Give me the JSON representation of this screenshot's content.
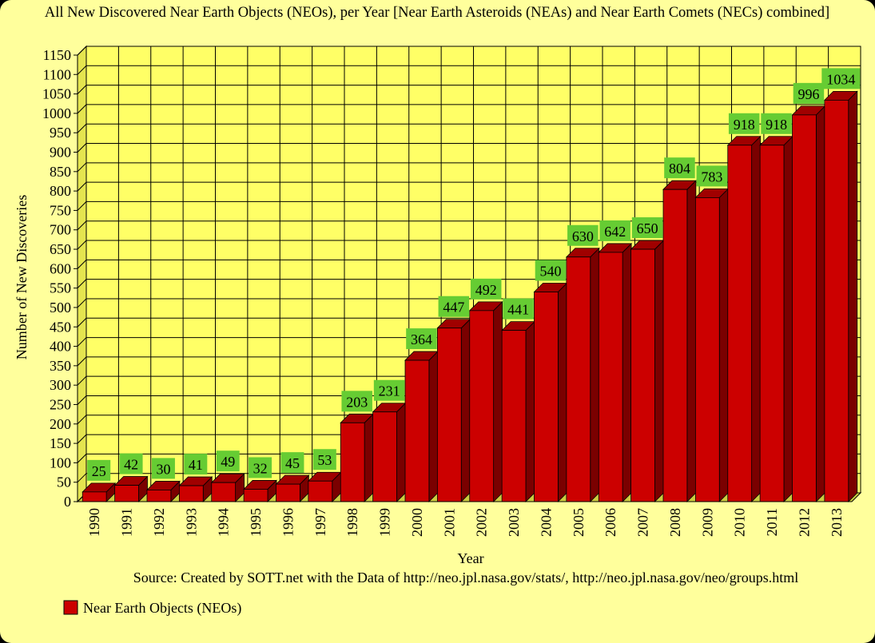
{
  "chart_data": {
    "type": "bar",
    "title": "All New Discovered Near Earth Objects (NEOs), per Year [Near Earth Asteroids (NEAs) and Near Earth Comets (NECs) combined]",
    "xlabel": "Year",
    "ylabel": "Number of New Discoveries",
    "source": "Source: Created by SOTT.net with the Data of http://neo.jpl.nasa.gov/stats/, http://neo.jpl.nasa.gov/neo/groups.html",
    "categories": [
      "1990",
      "1991",
      "1992",
      "1993",
      "1994",
      "1995",
      "1996",
      "1997",
      "1998",
      "1999",
      "2000",
      "2001",
      "2002",
      "2003",
      "2004",
      "2005",
      "2006",
      "2007",
      "2008",
      "2009",
      "2010",
      "2011",
      "2012",
      "2013"
    ],
    "series": [
      {
        "name": "Near Earth Objects (NEOs)",
        "values": [
          25,
          42,
          30,
          41,
          49,
          32,
          45,
          53,
          203,
          231,
          364,
          447,
          492,
          441,
          540,
          630,
          642,
          650,
          804,
          783,
          918,
          918,
          996,
          1034
        ]
      }
    ],
    "ylim": [
      0,
      1150
    ],
    "yticks": [
      0,
      50,
      100,
      150,
      200,
      250,
      300,
      350,
      400,
      450,
      500,
      550,
      600,
      650,
      700,
      750,
      800,
      850,
      900,
      950,
      1000,
      1050,
      1100,
      1150
    ],
    "grid": true,
    "legend_position": "bottom-left",
    "colors": {
      "bar_front": "#cc0000",
      "bar_side": "#7a0000",
      "bar_top": "#a00000",
      "plot_background": "#ffff66",
      "page_background": "#ffff9c",
      "label_box": "#66cc33"
    }
  }
}
